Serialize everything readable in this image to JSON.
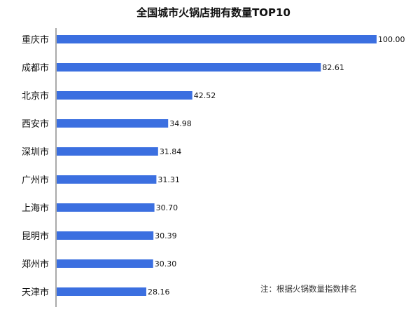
{
  "chart_data": {
    "type": "bar",
    "orientation": "horizontal",
    "title": "全国城市火锅店拥有数量TOP10",
    "categories": [
      "重庆市",
      "成都市",
      "北京市",
      "西安市",
      "深圳市",
      "广州市",
      "上海市",
      "昆明市",
      "郑州市",
      "天津市"
    ],
    "values": [
      100.0,
      82.61,
      42.52,
      34.98,
      31.84,
      31.31,
      30.7,
      30.39,
      30.3,
      28.16
    ],
    "value_labels": [
      "100.00",
      "82.61",
      "42.52",
      "34.98",
      "31.84",
      "31.31",
      "30.70",
      "30.39",
      "30.30",
      "28.16"
    ],
    "xlim": [
      0,
      100
    ],
    "grid": false,
    "bar_color": "#3b6fe0",
    "annotation": "注：根据火锅数量指数排名"
  }
}
